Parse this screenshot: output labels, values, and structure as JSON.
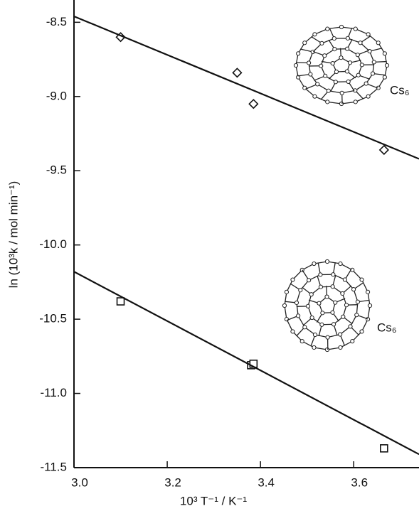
{
  "chart_data": {
    "type": "scatter",
    "x_label": "10³ T⁻¹ / K⁻¹",
    "y_label": "ln (10³k / mol min⁻¹)",
    "xlim": [
      3.0,
      3.74
    ],
    "ylim": [
      -11.5,
      -8.35
    ],
    "xticks": [
      {
        "value": 3.0,
        "label": "3.0"
      },
      3.2,
      3.4,
      3.6
    ],
    "yticks": [
      -8.5,
      {
        "value": -9.0,
        "label": "-9.0"
      },
      -9.5,
      {
        "value": -10.0,
        "label": "-10.0"
      },
      -10.5,
      {
        "value": -11.0,
        "label": "-11.0"
      },
      -11.5
    ],
    "annotations": [
      "Cs₆",
      "Cs₆"
    ],
    "series": [
      {
        "marker": "diamond",
        "color": "#111111",
        "x": [
          3.1,
          3.35,
          3.385,
          3.665
        ],
        "values": [
          -8.6,
          -8.84,
          -9.05,
          -9.36
        ]
      },
      {
        "marker": "square",
        "color": "#111111",
        "x": [
          3.1,
          3.38,
          3.385,
          3.665
        ],
        "values": [
          -10.38,
          -10.81,
          -10.8,
          -11.37
        ]
      },
      {
        "marker": "line",
        "color": "#111111",
        "x": [
          3.0,
          3.74
        ],
        "values": [
          -8.46,
          -9.42
        ]
      },
      {
        "marker": "line",
        "color": "#111111",
        "x": [
          3.0,
          3.74
        ],
        "values": [
          -10.18,
          -11.41
        ]
      }
    ]
  }
}
